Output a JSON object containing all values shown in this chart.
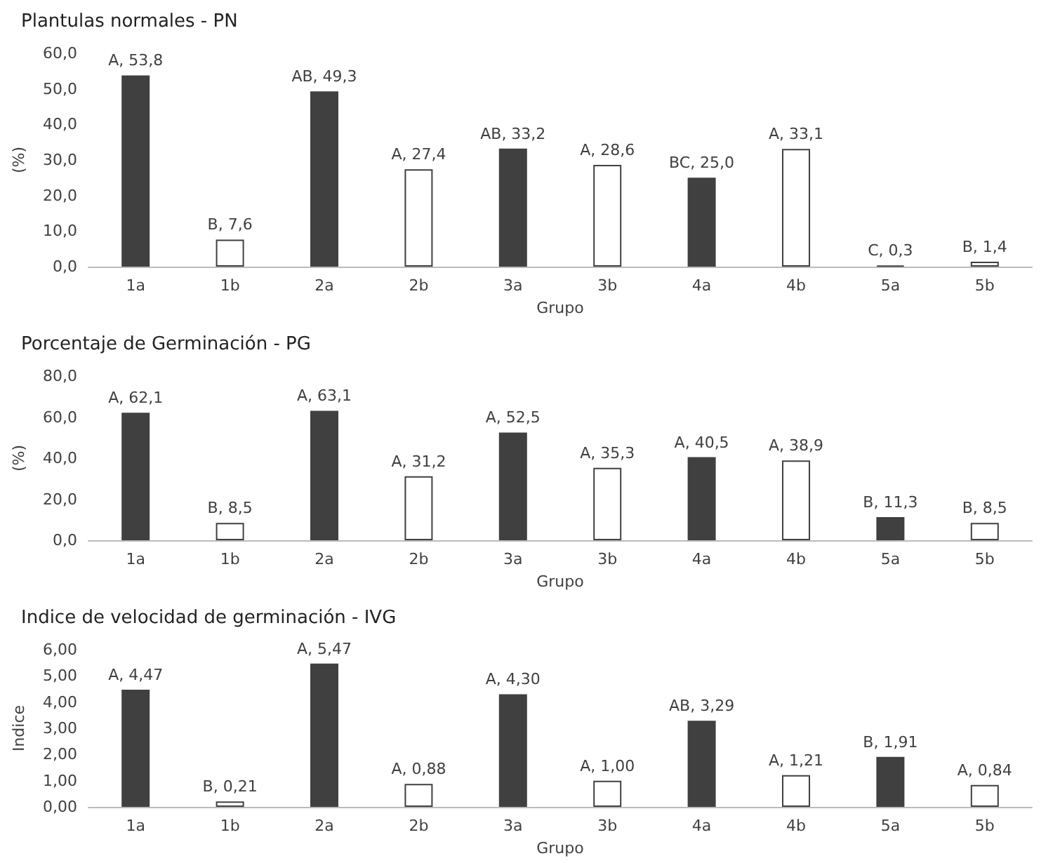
{
  "chart_data": [
    {
      "type": "bar",
      "title": "Plantulas normales - PN",
      "xlabel": "Grupo",
      "ylabel": "(%)",
      "categories": [
        "1a",
        "1b",
        "2a",
        "2b",
        "3a",
        "3b",
        "4a",
        "4b",
        "5a",
        "5b"
      ],
      "values": [
        53.8,
        7.6,
        49.3,
        27.4,
        33.2,
        28.6,
        25.0,
        33.1,
        0.3,
        1.4
      ],
      "colors": [
        "#404040",
        "#ffffff",
        "#404040",
        "#ffffff",
        "#404040",
        "#ffffff",
        "#404040",
        "#ffffff",
        "#404040",
        "#ffffff"
      ],
      "value_labels": [
        "A, 53,8",
        "B, 7,6",
        "AB, 49,3",
        "A, 27,4",
        "AB, 33,2",
        "A, 28,6",
        "BC, 25,0",
        "A, 33,1",
        "C, 0,3",
        "B, 1,4"
      ],
      "ylim": [
        0,
        60
      ],
      "yticks": [
        {
          "value": 0,
          "label": "0,0"
        },
        {
          "value": 10,
          "label": "10,0"
        },
        {
          "value": 20,
          "label": "20,0"
        },
        {
          "value": 30,
          "label": "30,0"
        },
        {
          "value": 40,
          "label": "40,0"
        },
        {
          "value": 50,
          "label": "50,0"
        },
        {
          "value": 60,
          "label": "60,0"
        }
      ],
      "grid": false
    },
    {
      "type": "bar",
      "title": "Porcentaje de Germinación - PG",
      "xlabel": "Grupo",
      "ylabel": "(%)",
      "categories": [
        "1a",
        "1b",
        "2a",
        "2b",
        "3a",
        "3b",
        "4a",
        "4b",
        "5a",
        "5b"
      ],
      "values": [
        62.1,
        8.5,
        63.1,
        31.2,
        52.5,
        35.3,
        40.5,
        38.9,
        11.3,
        8.5
      ],
      "colors": [
        "#404040",
        "#ffffff",
        "#404040",
        "#ffffff",
        "#404040",
        "#ffffff",
        "#404040",
        "#ffffff",
        "#404040",
        "#ffffff"
      ],
      "value_labels": [
        "A, 62,1",
        "B, 8,5",
        "A, 63,1",
        "A, 31,2",
        "A, 52,5",
        "A, 35,3",
        "A, 40,5",
        "A, 38,9",
        "B, 11,3",
        "B, 8,5"
      ],
      "ylim": [
        0,
        80
      ],
      "yticks": [
        {
          "value": 0,
          "label": "0,0"
        },
        {
          "value": 20,
          "label": "20,0"
        },
        {
          "value": 40,
          "label": "40,0"
        },
        {
          "value": 60,
          "label": "60,0"
        },
        {
          "value": 80,
          "label": "80,0"
        }
      ],
      "grid": false
    },
    {
      "type": "bar",
      "title": "Indice de velocidad de germinación - IVG",
      "xlabel": "Grupo",
      "ylabel": "Indice",
      "categories": [
        "1a",
        "1b",
        "2a",
        "2b",
        "3a",
        "3b",
        "4a",
        "4b",
        "5a",
        "5b"
      ],
      "values": [
        4.47,
        0.21,
        5.47,
        0.88,
        4.3,
        1.0,
        3.29,
        1.21,
        1.91,
        0.84
      ],
      "colors": [
        "#404040",
        "#ffffff",
        "#404040",
        "#ffffff",
        "#404040",
        "#ffffff",
        "#404040",
        "#ffffff",
        "#404040",
        "#ffffff"
      ],
      "value_labels": [
        "A, 4,47",
        "B, 0,21",
        "A, 5,47",
        "A, 0,88",
        "A, 4,30",
        "A, 1,00",
        "AB, 3,29",
        "A, 1,21",
        "B, 1,91",
        "A, 0,84"
      ],
      "ylim": [
        0,
        6
      ],
      "yticks": [
        {
          "value": 0,
          "label": "0,00"
        },
        {
          "value": 1,
          "label": "1,00"
        },
        {
          "value": 2,
          "label": "2,00"
        },
        {
          "value": 3,
          "label": "3,00"
        },
        {
          "value": 4,
          "label": "4,00"
        },
        {
          "value": 5,
          "label": "5,00"
        },
        {
          "value": 6,
          "label": "6,00"
        }
      ],
      "grid": false
    }
  ]
}
